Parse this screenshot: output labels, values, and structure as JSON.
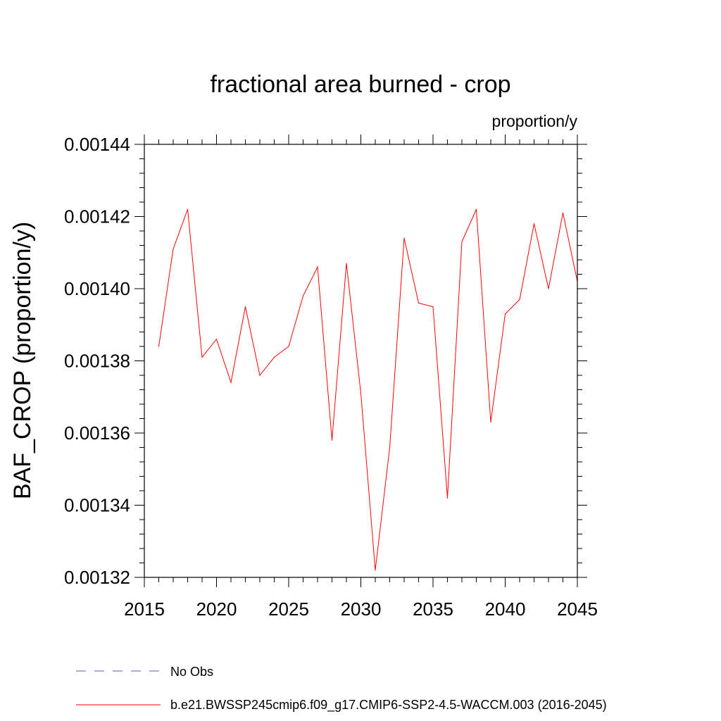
{
  "chart_data": {
    "type": "line",
    "title": "fractional area burned - crop",
    "units_label": "proportion/y",
    "xlabel": "",
    "ylabel": "BAF_CROP  (proportion/y)",
    "xlim": [
      2015,
      2045
    ],
    "ylim": [
      0.00132,
      0.00144
    ],
    "x_ticks": [
      2015,
      2020,
      2025,
      2030,
      2035,
      2040,
      2045
    ],
    "x_tick_labels": [
      "2015",
      "2020",
      "2025",
      "2030",
      "2035",
      "2040",
      "2045"
    ],
    "y_ticks": [
      0.00132,
      0.00134,
      0.00136,
      0.00138,
      0.0014,
      0.00142,
      0.00144
    ],
    "y_tick_labels": [
      "0.00132",
      "0.00134",
      "0.00136",
      "0.00138",
      "0.00140",
      "0.00142",
      "0.00144"
    ],
    "grid": false,
    "legend_position": "bottom",
    "series": [
      {
        "name": "b.e21.BWSSP245cmip6.f09_g17.CMIP6-SSP2-4.5-WACCM.003 (2016-2045)",
        "color": "#ff0000",
        "style": "solid",
        "x": [
          2016,
          2017,
          2018,
          2019,
          2020,
          2021,
          2022,
          2023,
          2024,
          2025,
          2026,
          2027,
          2028,
          2029,
          2030,
          2031,
          2032,
          2033,
          2034,
          2035,
          2036,
          2037,
          2038,
          2039,
          2040,
          2041,
          2042,
          2043,
          2044,
          2045
        ],
        "values": [
          0.001384,
          0.001411,
          0.001422,
          0.001381,
          0.001386,
          0.001374,
          0.001395,
          0.001376,
          0.001381,
          0.001384,
          0.001398,
          0.001406,
          0.001358,
          0.001407,
          0.001371,
          0.001322,
          0.001356,
          0.001414,
          0.001396,
          0.001395,
          0.001342,
          0.001413,
          0.001422,
          0.001363,
          0.001393,
          0.001397,
          0.001418,
          0.0014,
          0.001421,
          0.001402
        ]
      }
    ],
    "legend": [
      {
        "label": "No Obs",
        "color": "#6655aa",
        "style": "dashed"
      },
      {
        "label": "b.e21.BWSSP245cmip6.f09_g17.CMIP6-SSP2-4.5-WACCM.003 (2016-2045)",
        "color": "#ff0000",
        "style": "solid"
      }
    ]
  }
}
